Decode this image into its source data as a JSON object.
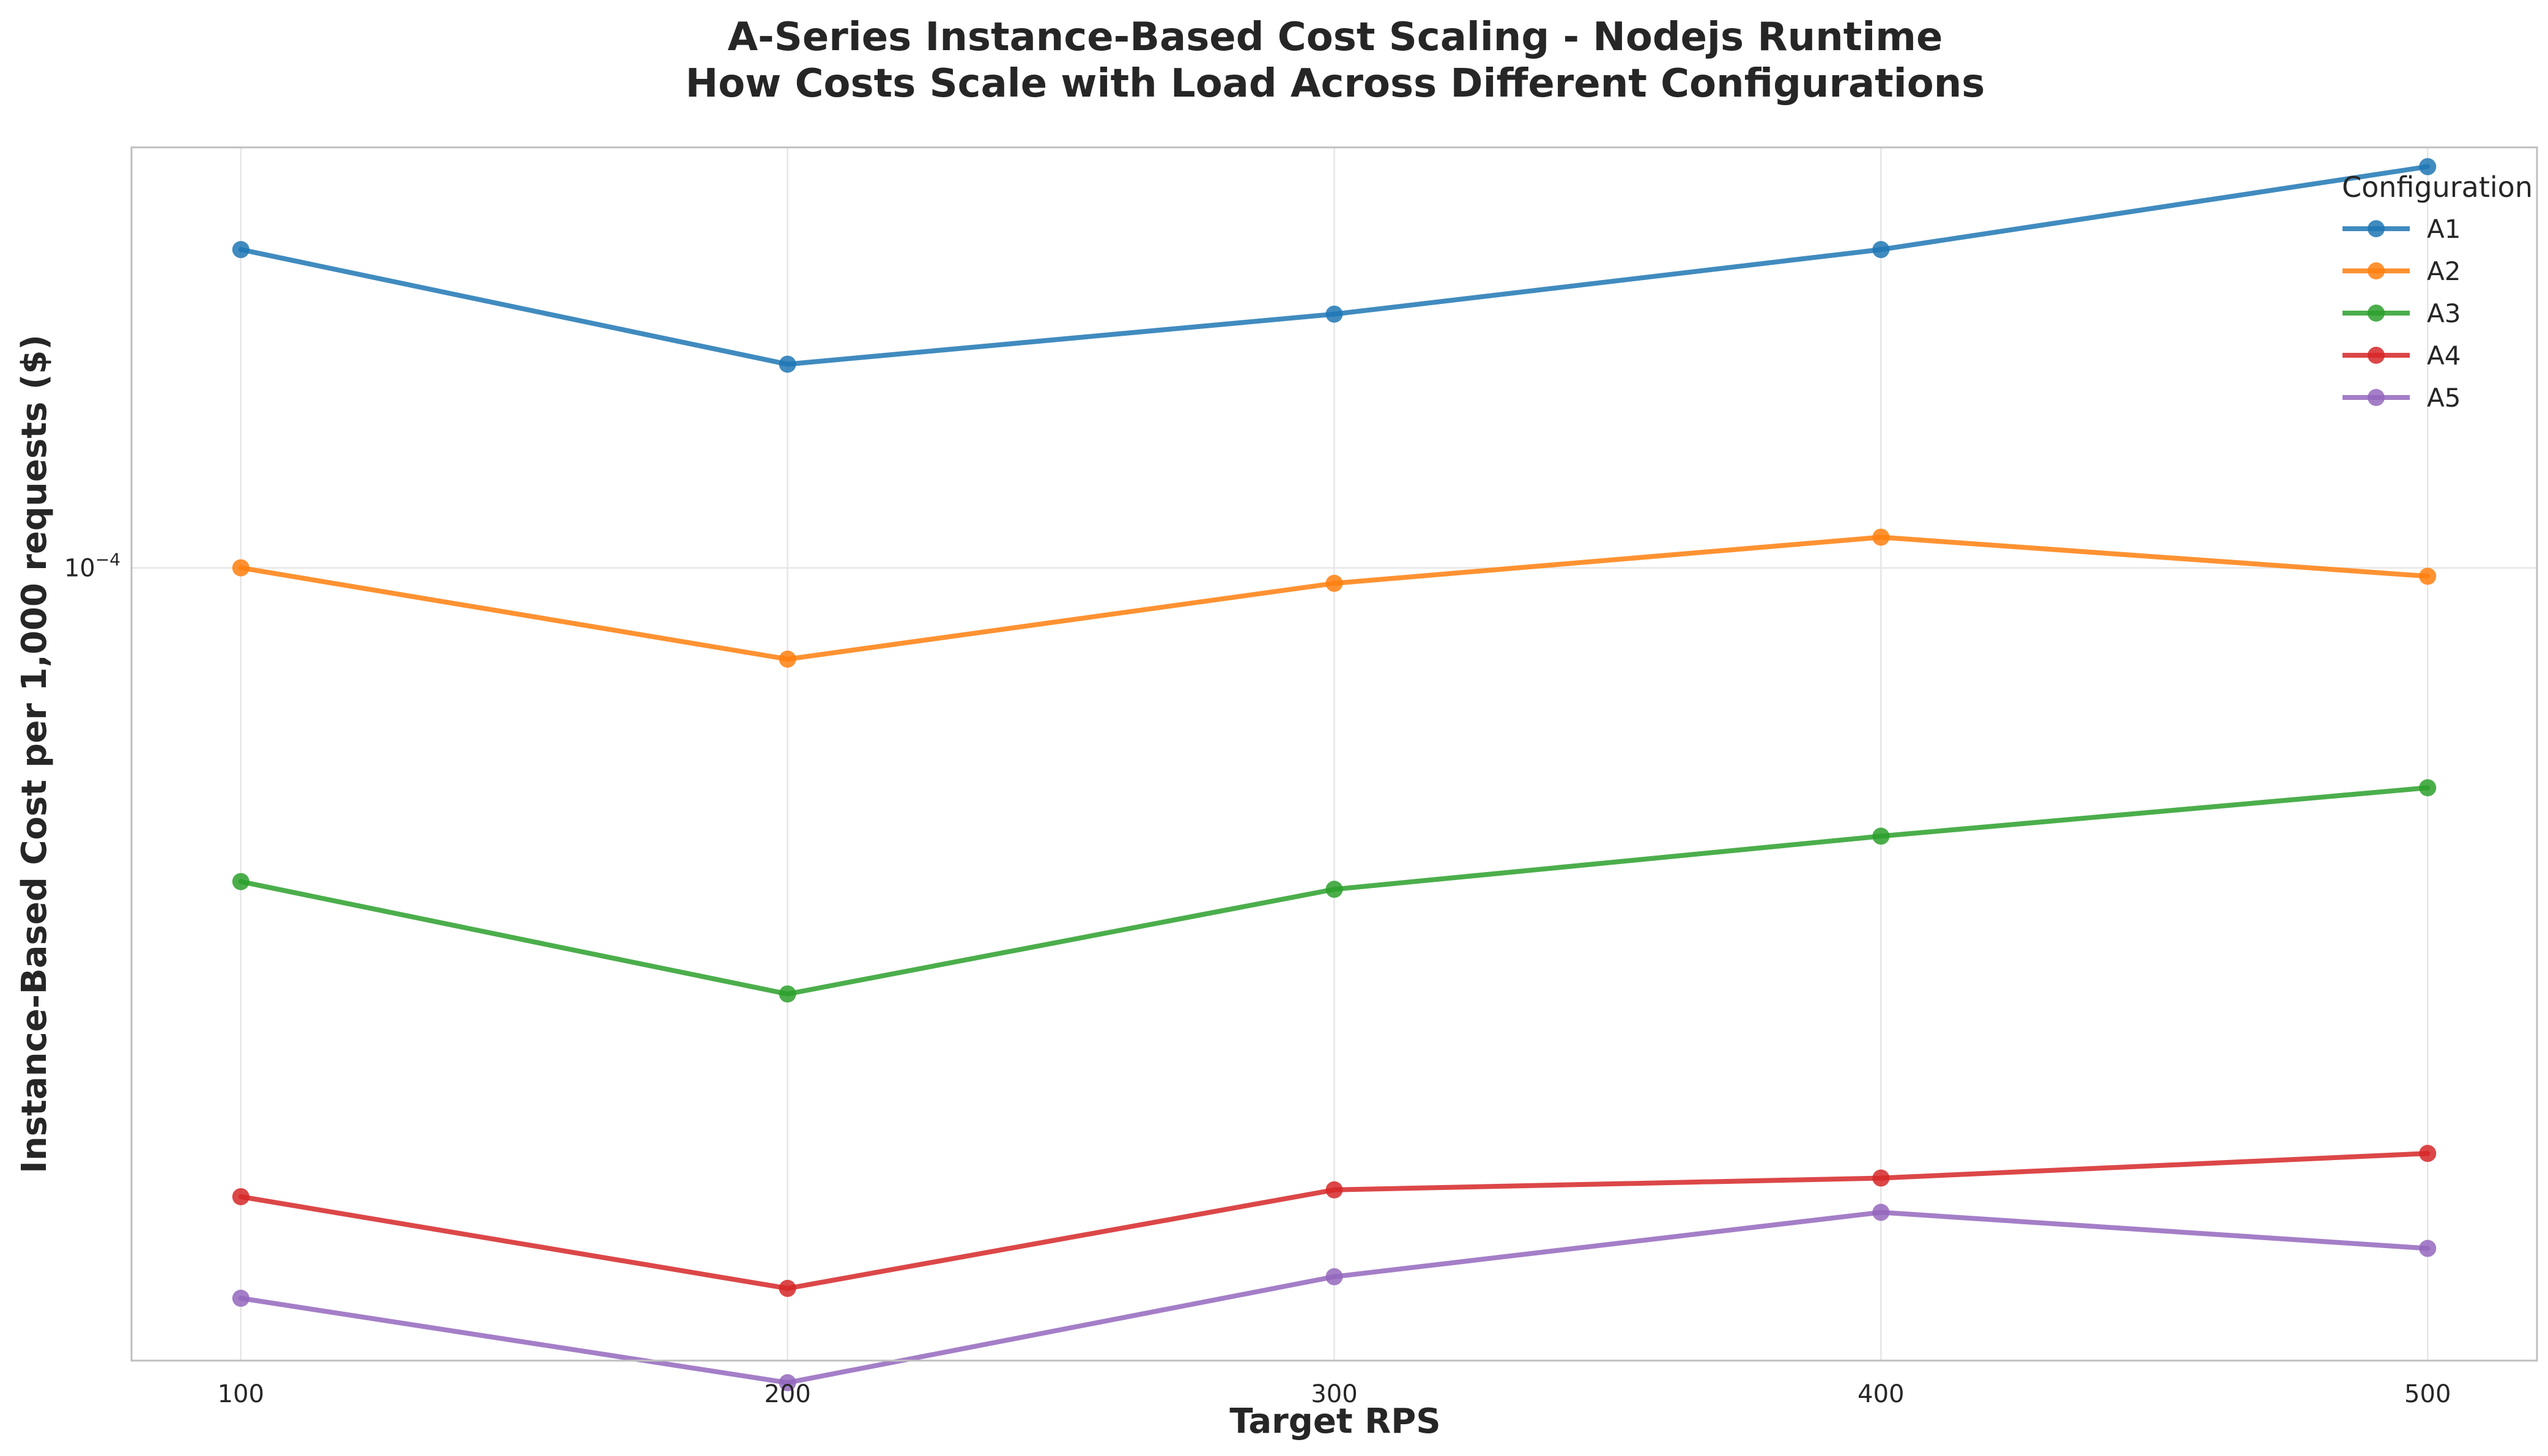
{
  "chart_data": {
    "type": "line",
    "title": "A-Series Instance-Based Cost Scaling - Nodejs Runtime",
    "subtitle": "How Costs Scale with Load Across Different Configurations",
    "xlabel": "Target RPS",
    "ylabel": "Instance-Based Cost per 1,000 requests ($)",
    "yscale": "log",
    "x": [
      100,
      200,
      300,
      400,
      500
    ],
    "x_ticks": [
      "100",
      "200",
      "300",
      "400",
      "500"
    ],
    "xlim": [
      80,
      520
    ],
    "ylim": [
      3.2e-05,
      0.000183
    ],
    "y_ticks": [
      {
        "value": 0.0001,
        "base": "10",
        "exponent": "−4"
      }
    ],
    "grid": true,
    "legend": {
      "title": "Configuration",
      "position": "top-right"
    },
    "series": [
      {
        "name": "A1",
        "color": "#1f77b4",
        "values": [
          0.000158,
          0.000134,
          0.000144,
          0.000158,
          0.000178
        ]
      },
      {
        "name": "A2",
        "color": "#ff7f0e",
        "values": [
          0.0001,
          8.77e-05,
          9.78e-05,
          0.0001045,
          9.88e-05
        ]
      },
      {
        "name": "A3",
        "color": "#2ca02c",
        "values": [
          6.37e-05,
          5.42e-05,
          6.3e-05,
          6.8e-05,
          7.29e-05
        ]
      },
      {
        "name": "A4",
        "color": "#d62728",
        "values": [
          4.05e-05,
          3.55e-05,
          4.09e-05,
          4.16e-05,
          4.31e-05
        ]
      },
      {
        "name": "A5",
        "color": "#9467bd",
        "values": [
          3.5e-05,
          3.1e-05,
          3.61e-05,
          3.96e-05,
          3.76e-05
        ]
      }
    ]
  }
}
